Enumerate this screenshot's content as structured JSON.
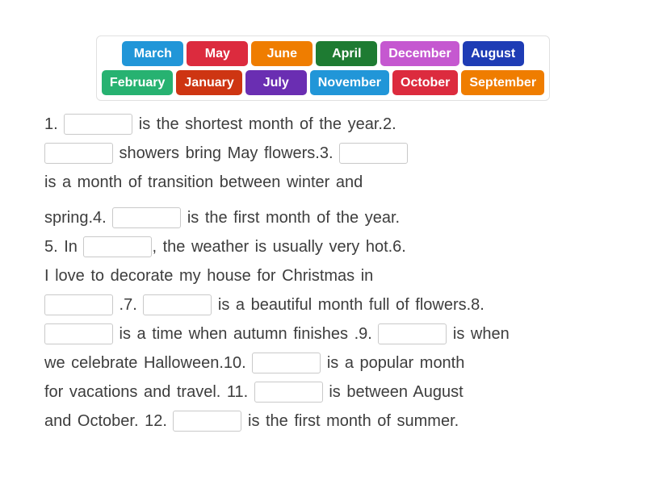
{
  "colors": {
    "page_background": "#ffffff",
    "sentence_text": "#3d3d3d",
    "blank_border": "#c9c9c9",
    "bank_border": "#e0e0e0",
    "chip_text": "#ffffff"
  },
  "word_bank": {
    "rows": [
      [
        {
          "label": "March",
          "color": "#2196d8"
        },
        {
          "label": "May",
          "color": "#dc2b3e"
        },
        {
          "label": "June",
          "color": "#ef7d00"
        },
        {
          "label": "April",
          "color": "#1e7b32"
        },
        {
          "label": "December",
          "color": "#c558d0"
        },
        {
          "label": "August",
          "color": "#1e3cb5"
        }
      ],
      [
        {
          "label": "February",
          "color": "#27b271"
        },
        {
          "label": "January",
          "color": "#ce3512"
        },
        {
          "label": "July",
          "color": "#6a2eb2"
        },
        {
          "label": "November",
          "color": "#2196d8"
        },
        {
          "label": "October",
          "color": "#dc2b3e"
        },
        {
          "label": "September",
          "color": "#ef7d00"
        }
      ]
    ]
  },
  "sentences": {
    "lines": [
      {
        "gap_top": false,
        "segments": [
          {
            "text": "1. "
          },
          {
            "blank": 1
          },
          {
            "text": " is the shortest month of the year.2."
          }
        ]
      },
      {
        "gap_top": false,
        "segments": [
          {
            "blank": 2
          },
          {
            "text": " showers bring May flowers.3. "
          },
          {
            "blank": 3
          }
        ]
      },
      {
        "gap_top": false,
        "segments": [
          {
            "text": "is a month of transition between winter and"
          }
        ]
      },
      {
        "gap_top": true,
        "segments": [
          {
            "text": "spring.4. "
          },
          {
            "blank": 4
          },
          {
            "text": " is the first month of the year."
          }
        ]
      },
      {
        "gap_top": false,
        "segments": [
          {
            "text": "5. In "
          },
          {
            "blank": 5
          },
          {
            "text": ", the weather is usually very hot.6."
          }
        ]
      },
      {
        "gap_top": false,
        "segments": [
          {
            "text": "I love to decorate my house for Christmas in"
          }
        ]
      },
      {
        "gap_top": false,
        "segments": [
          {
            "blank": 6
          },
          {
            "text": " .7. "
          },
          {
            "blank": 7
          },
          {
            "text": " is a beautiful month full of flowers.8."
          }
        ]
      },
      {
        "gap_top": false,
        "segments": [
          {
            "blank": 8
          },
          {
            "text": " is a time when autumn finishes .9. "
          },
          {
            "blank": 9
          },
          {
            "text": " is when"
          }
        ]
      },
      {
        "gap_top": false,
        "segments": [
          {
            "text": "we celebrate Halloween.10. "
          },
          {
            "blank": 10
          },
          {
            "text": " is a popular month"
          }
        ]
      },
      {
        "gap_top": false,
        "segments": [
          {
            "text": "for vacations and travel. 11. "
          },
          {
            "blank": 11
          },
          {
            "text": " is between August"
          }
        ]
      },
      {
        "gap_top": false,
        "segments": [
          {
            "text": "and October. 12. "
          },
          {
            "blank": 12
          },
          {
            "text": " is the first month of summer."
          }
        ]
      }
    ]
  }
}
